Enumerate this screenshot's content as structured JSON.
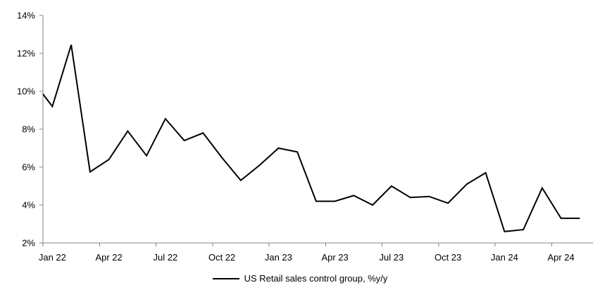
{
  "chart_data": {
    "type": "line",
    "title": "",
    "x": [
      "Dec 21",
      "Jan 22",
      "Feb 22",
      "Mar 22",
      "Apr 22",
      "May 22",
      "Jun 22",
      "Jul 22",
      "Aug 22",
      "Sep 22",
      "Oct 22",
      "Nov 22",
      "Dec 22",
      "Jan 23",
      "Feb 23",
      "Mar 23",
      "Apr 23",
      "May 23",
      "Jun 23",
      "Jul 23",
      "Aug 23",
      "Sep 23",
      "Oct 23",
      "Nov 23",
      "Dec 23",
      "Jan 24",
      "Feb 24",
      "Mar 24",
      "Apr 24",
      "May 24"
    ],
    "series": [
      {
        "name": "US Retail sales control group, %y/y",
        "color": "#000000",
        "values": [
          10.5,
          9.2,
          12.45,
          5.75,
          6.4,
          7.9,
          6.6,
          8.55,
          7.4,
          7.8,
          6.5,
          5.3,
          6.1,
          7.0,
          6.8,
          4.2,
          4.2,
          4.5,
          4.0,
          5.0,
          4.4,
          4.45,
          4.1,
          5.1,
          5.7,
          2.6,
          2.7,
          4.9,
          3.3,
          3.3
        ]
      }
    ],
    "first_point_note": "Dec 21 lead-in segment is clipped at the left axis",
    "x_tick_labels": [
      "Jan 22",
      "Apr 22",
      "Jul 22",
      "Oct 22",
      "Jan 23",
      "Apr 23",
      "Jul 23",
      "Oct 23",
      "Jan 24",
      "Apr 24"
    ],
    "y_tick_labels": [
      "2%",
      "4%",
      "6%",
      "8%",
      "10%",
      "12%",
      "14%"
    ],
    "ylim": [
      2,
      14
    ],
    "y_tick_step": 2,
    "grid": false,
    "markers": false,
    "legend": {
      "position": "bottom-center",
      "label": "US Retail sales control group, %y/y"
    },
    "colors": {
      "line": "#000000",
      "axis": "#848484",
      "text": "#000000",
      "background": "#ffffff"
    }
  }
}
